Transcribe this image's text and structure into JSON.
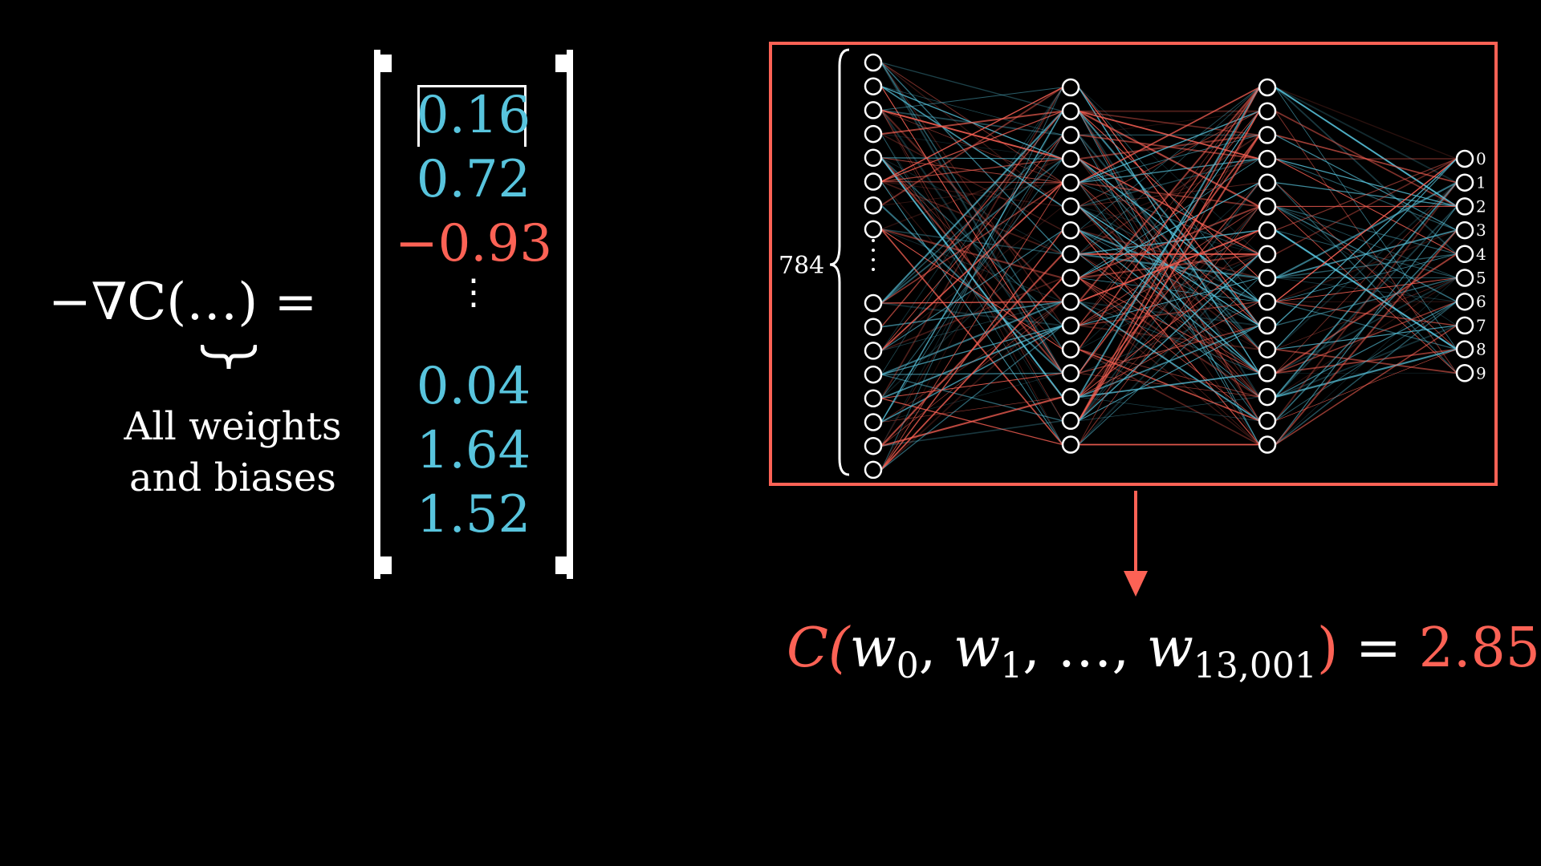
{
  "gradient_expression": {
    "lhs": "−∇C(…) =",
    "brace_caption": [
      "All weights",
      "and biases"
    ]
  },
  "vector": {
    "entries": [
      {
        "text": "0.16",
        "sign": "positive"
      },
      {
        "text": "0.72",
        "sign": "positive"
      },
      {
        "text": "−0.93",
        "sign": "negative"
      },
      {
        "text": "0.04",
        "sign": "positive"
      },
      {
        "text": "1.64",
        "sign": "positive"
      },
      {
        "text": "1.52",
        "sign": "positive"
      }
    ],
    "ellipsis": "⋮"
  },
  "network": {
    "input_label": "784",
    "layer_sizes_shown": [
      16,
      16,
      16,
      10
    ],
    "output_labels": [
      "0",
      "1",
      "2",
      "3",
      "4",
      "5",
      "6",
      "7",
      "8",
      "9"
    ],
    "frame_color": "#FC6255",
    "positive_edge_color": "#58C4DD",
    "negative_edge_color": "#FC6255"
  },
  "cost_equation": {
    "prefix": "C(",
    "w0": "w",
    "w0_sub": "0",
    "w1": "w",
    "w1_sub": "1",
    "dots": "…",
    "wn": "w",
    "wn_sub": "13,001",
    "close": ")",
    "equals": " = ",
    "value": "2.85"
  },
  "colors": {
    "blue": "#58C4DD",
    "red": "#FC6255",
    "background": "#000000"
  }
}
